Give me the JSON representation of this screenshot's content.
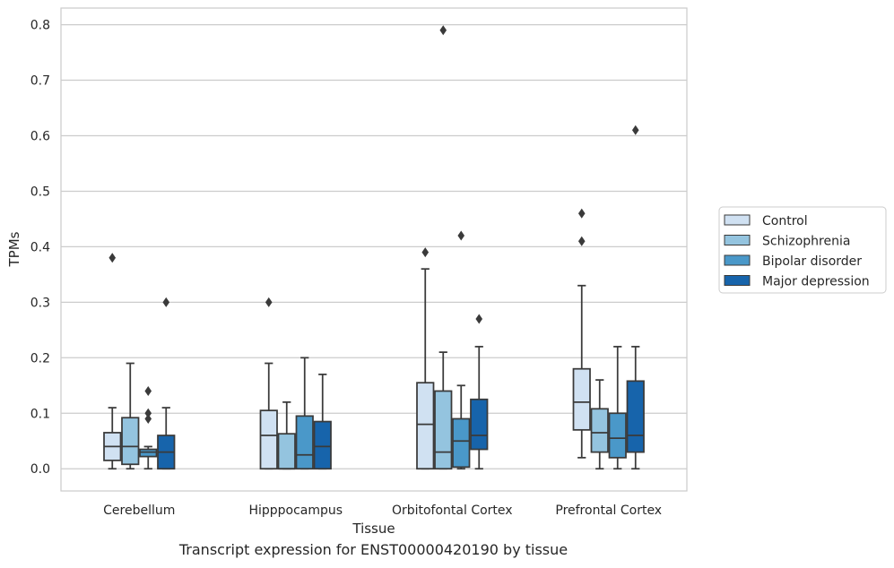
{
  "chart_data": {
    "type": "box",
    "title": "",
    "caption": "Transcript expression for ENST00000420190 by tissue",
    "xlabel": "Tissue",
    "ylabel": "TPMs",
    "ylim": [
      -0.04,
      0.83
    ],
    "yticks": [
      0.0,
      0.1,
      0.2,
      0.3,
      0.4,
      0.5,
      0.6,
      0.7,
      0.8
    ],
    "ytick_labels": [
      "0.0",
      "0.1",
      "0.2",
      "0.3",
      "0.4",
      "0.5",
      "0.6",
      "0.7",
      "0.8"
    ],
    "grid": "horizontal",
    "legend_position": "right",
    "categories": [
      "Cerebellum",
      "Hipppocampus",
      "Orbitofontal Cortex",
      "Prefrontal Cortex"
    ],
    "series": [
      {
        "name": "Control",
        "color": "#d0e1f2",
        "boxes": [
          {
            "whislo": 0.0,
            "q1": 0.015,
            "med": 0.04,
            "q3": 0.065,
            "whishi": 0.11,
            "fliers": [
              0.38
            ]
          },
          {
            "whislo": 0.0,
            "q1": 0.0,
            "med": 0.06,
            "q3": 0.105,
            "whishi": 0.19,
            "fliers": [
              0.3
            ]
          },
          {
            "whislo": 0.0,
            "q1": 0.0,
            "med": 0.08,
            "q3": 0.155,
            "whishi": 0.36,
            "fliers": [
              0.39
            ]
          },
          {
            "whislo": 0.02,
            "q1": 0.07,
            "med": 0.12,
            "q3": 0.18,
            "whishi": 0.33,
            "fliers": [
              0.41,
              0.46
            ]
          }
        ]
      },
      {
        "name": "Schizophrenia",
        "color": "#94c4df",
        "boxes": [
          {
            "whislo": 0.0,
            "q1": 0.008,
            "med": 0.04,
            "q3": 0.092,
            "whishi": 0.19,
            "fliers": []
          },
          {
            "whislo": 0.0,
            "q1": 0.0,
            "med": 0.0,
            "q3": 0.063,
            "whishi": 0.12,
            "fliers": []
          },
          {
            "whislo": 0.0,
            "q1": 0.0,
            "med": 0.03,
            "q3": 0.14,
            "whishi": 0.21,
            "fliers": [
              0.79
            ]
          },
          {
            "whislo": 0.0,
            "q1": 0.03,
            "med": 0.065,
            "q3": 0.108,
            "whishi": 0.16,
            "fliers": []
          }
        ]
      },
      {
        "name": "Bipolar disorder",
        "color": "#4a98c9",
        "boxes": [
          {
            "whislo": 0.0,
            "q1": 0.022,
            "med": 0.03,
            "q3": 0.035,
            "whishi": 0.04,
            "fliers": [
              0.09,
              0.1,
              0.14
            ]
          },
          {
            "whislo": 0.0,
            "q1": 0.0,
            "med": 0.025,
            "q3": 0.095,
            "whishi": 0.2,
            "fliers": []
          },
          {
            "whislo": 0.0,
            "q1": 0.003,
            "med": 0.05,
            "q3": 0.09,
            "whishi": 0.15,
            "fliers": [
              0.42
            ]
          },
          {
            "whislo": 0.0,
            "q1": 0.02,
            "med": 0.055,
            "q3": 0.1,
            "whishi": 0.22,
            "fliers": []
          }
        ]
      },
      {
        "name": "Major depression",
        "color": "#1764ab",
        "boxes": [
          {
            "whislo": 0.0,
            "q1": 0.0,
            "med": 0.03,
            "q3": 0.06,
            "whishi": 0.11,
            "fliers": [
              0.3
            ]
          },
          {
            "whislo": 0.0,
            "q1": 0.0,
            "med": 0.04,
            "q3": 0.085,
            "whishi": 0.17,
            "fliers": []
          },
          {
            "whislo": 0.0,
            "q1": 0.035,
            "med": 0.06,
            "q3": 0.125,
            "whishi": 0.22,
            "fliers": [
              0.27
            ]
          },
          {
            "whislo": 0.0,
            "q1": 0.03,
            "med": 0.06,
            "q3": 0.158,
            "whishi": 0.22,
            "fliers": [
              0.61
            ]
          }
        ]
      }
    ]
  }
}
